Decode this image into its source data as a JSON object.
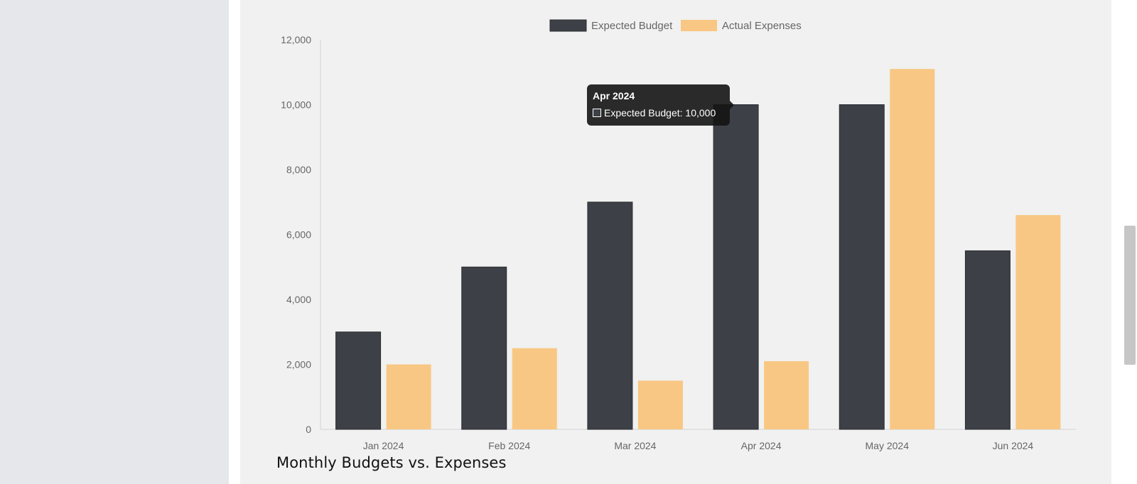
{
  "chart_data": {
    "type": "bar",
    "title": "Monthly Budgets vs. Expenses",
    "categories": [
      "Jan 2024",
      "Feb 2024",
      "Mar 2024",
      "Apr 2024",
      "May 2024",
      "Jun 2024"
    ],
    "series": [
      {
        "name": "Expected Budget",
        "color": "#3d4147",
        "values": [
          3000,
          5000,
          7000,
          10000,
          10000,
          5500
        ]
      },
      {
        "name": "Actual Expenses",
        "color": "#f9c784",
        "values": [
          2000,
          2500,
          1500,
          2100,
          11100,
          6600
        ]
      }
    ],
    "ylim": [
      0,
      12000
    ],
    "yticks": [
      "0",
      "2,000",
      "4,000",
      "6,000",
      "8,000",
      "10,000",
      "12,000"
    ],
    "legend": "top-center",
    "grid": false
  },
  "tooltip": {
    "title": "Apr 2024",
    "label": "Expected Budget: 10,000"
  }
}
